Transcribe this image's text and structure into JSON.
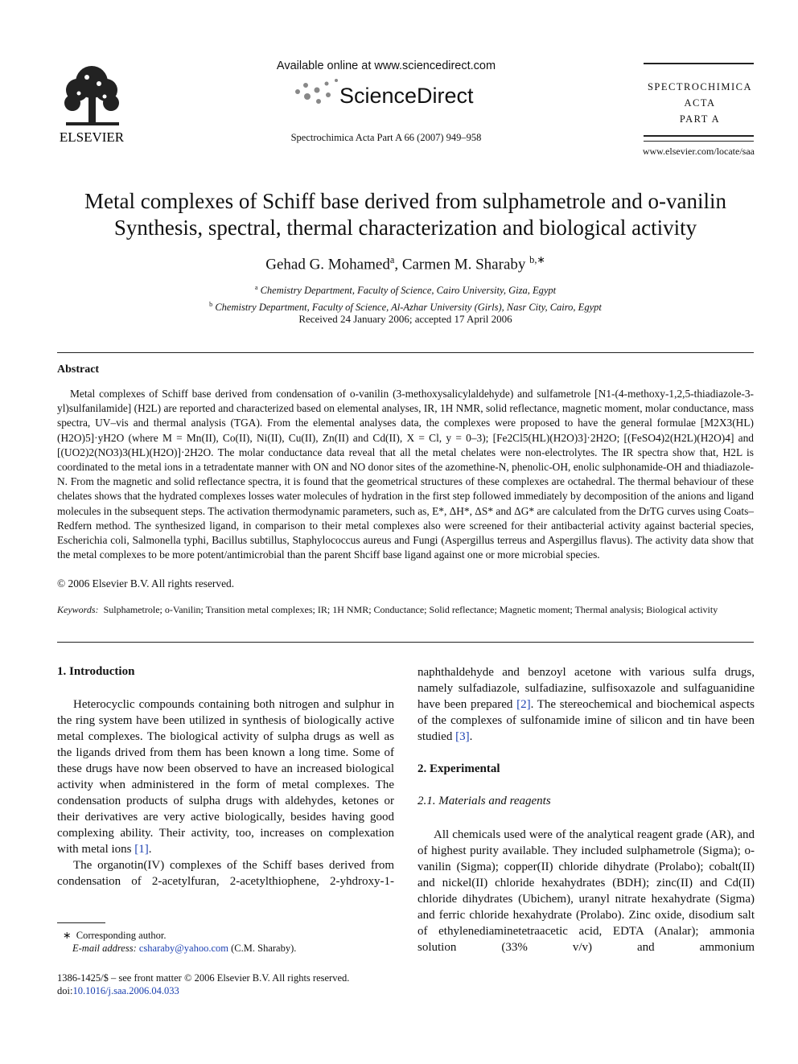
{
  "header": {
    "available": "Available online at www.sciencedirect.com",
    "brand": "ScienceDirect",
    "publisher": "ELSEVIER",
    "citation": "Spectrochimica Acta Part A 66 (2007) 949–958",
    "journal": [
      "SPECTROCHIMICA",
      "ACTA",
      "PART A"
    ],
    "url": "www.elsevier.com/locate/saa"
  },
  "article": {
    "title": [
      "Metal complexes of Schiff base derived from sulphametrole and o-vanilin",
      "Synthesis, spectral, thermal characterization and biological activity"
    ],
    "authors": [
      "Gehad G. Mohamed",
      "a",
      ", Carmen M. Sharaby",
      "b,∗"
    ],
    "affiliations": [
      {
        "mark": "a",
        "text": "Chemistry Department, Faculty of Science, Cairo University, Giza, Egypt"
      },
      {
        "mark": "b",
        "text": "Chemistry Department, Faculty of Science, Al-Azhar University (Girls), Nasr City, Cairo, Egypt"
      }
    ],
    "received": "Received 24 January 2006; accepted 17 April 2006"
  },
  "abstract": {
    "heading": "Abstract",
    "text": "Metal complexes of Schiff base derived from condensation of o-vanilin (3-methoxysalicylaldehyde) and sulfametrole [N1-(4-methoxy-1,2,5-thiadiazole-3-yl)sulfanilamide] (H2L) are reported and characterized based on elemental analyses, IR, 1H NMR, solid reflectance, magnetic moment, molar conductance, mass spectra, UV–vis and thermal analysis (TGA). From the elemental analyses data, the complexes were proposed to have the general formulae [M2X3(HL)(H2O)5]·yH2O (where M = Mn(II), Co(II), Ni(II), Cu(II), Zn(II) and Cd(II), X = Cl, y = 0–3); [Fe2Cl5(HL)(H2O)3]·2H2O; [(FeSO4)2(H2L)(H2O)4] and [(UO2)2(NO3)3(HL)(H2O)]·2H2O. The molar conductance data reveal that all the metal chelates were non-electrolytes. The IR spectra show that, H2L is coordinated to the metal ions in a tetradentate manner with ON and NO donor sites of the azomethine-N, phenolic-OH, enolic sulphonamide-OH and thiadiazole-N. From the magnetic and solid reflectance spectra, it is found that the geometrical structures of these complexes are octahedral. The thermal behaviour of these chelates shows that the hydrated complexes losses water molecules of hydration in the first step followed immediately by decomposition of the anions and ligand molecules in the subsequent steps. The activation thermodynamic parameters, such as, E*, ΔH*, ΔS* and ΔG* are calculated from the DrTG curves using Coats–Redfern method. The synthesized ligand, in comparison to their metal complexes also were screened for their antibacterial activity against bacterial species, Escherichia coli, Salmonella typhi, Bacillus subtillus, Staphylococcus aureus and Fungi (Aspergillus terreus and Aspergillus flavus). The activity data show that the metal complexes to be more potent/antimicrobial than the parent Shciff base ligand against one or more microbial species.",
    "copyright": "© 2006 Elsevier B.V. All rights reserved."
  },
  "keywords": {
    "label": "Keywords:",
    "text": "Sulphametrole; o-Vanilin; Transition metal complexes; IR; 1H NMR; Conductance; Solid reflectance; Magnetic moment; Thermal analysis; Biological activity"
  },
  "sections": [
    {
      "heading": "1. Introduction",
      "paragraphs": [
        [
          "Heterocyclic compounds containing both nitrogen and sulphur in the ring system have been utilized in synthesis of biologically active metal complexes. The biological activity of sulpha drugs as well as the ligands drived from them has been known a long time. Some of these drugs have now been observed to have an increased biological activity when administered in the form of metal complexes. The condensation products of sulpha drugs with aldehydes, ketones or their derivatives are very active biologically, besides having good complexing ability. Their activity, too, increases on complexation with metal ions ",
          "[1]",
          "."
        ],
        [
          "The organotin(IV) complexes of the Schiff bases derived from condensation of 2-acetylfuran, 2-acetylthiophene, 2-yhdroxy-1-"
        ],
        [
          "naphthaldehyde and benzoyl acetone with various sulfa drugs, namely sulfadiazole, sulfadiazine, sulfisoxazole and sulfaguanidine have been prepared ",
          "[2]",
          ". The stereochemical and biochemical aspects of the complexes of sulfonamide imine of silicon and tin have been studied ",
          "[3]",
          "."
        ]
      ]
    },
    {
      "heading": "2. Experimental",
      "subsections": [
        {
          "heading": "2.1. Materials and reagents",
          "paragraphs": [
            [
              "All chemicals used were of the analytical reagent grade (AR), and of highest purity available. They included sulphametrole (Sigma); o-vanilin (Sigma); copper(II) chloride dihydrate (Prolabo); cobalt(II) and nickel(II) chloride hexahydrates (BDH); zinc(II) and Cd(II) chloride dihydrates (Ubichem), uranyl nitrate hexahydrate (Sigma) and ferric chloride hexahydrate (Prolabo). Zinc oxide, disodium salt of ethylenediaminetetraacetic acid, EDTA (Analar); ammonia solution (33% v/v) and ammonium"
            ]
          ]
        }
      ]
    }
  ],
  "footnote": {
    "mark": "∗",
    "text": "Corresponding author.",
    "email_label": "E-mail address:",
    "email": "csharaby@yahoo.com",
    "email_owner": "(C.M. Sharaby)."
  },
  "footer": {
    "issn": "1386-1425/$ – see front matter © 2006 Elsevier B.V. All rights reserved.",
    "doi_label": "doi:",
    "doi": "10.1016/j.saa.2006.04.033"
  }
}
